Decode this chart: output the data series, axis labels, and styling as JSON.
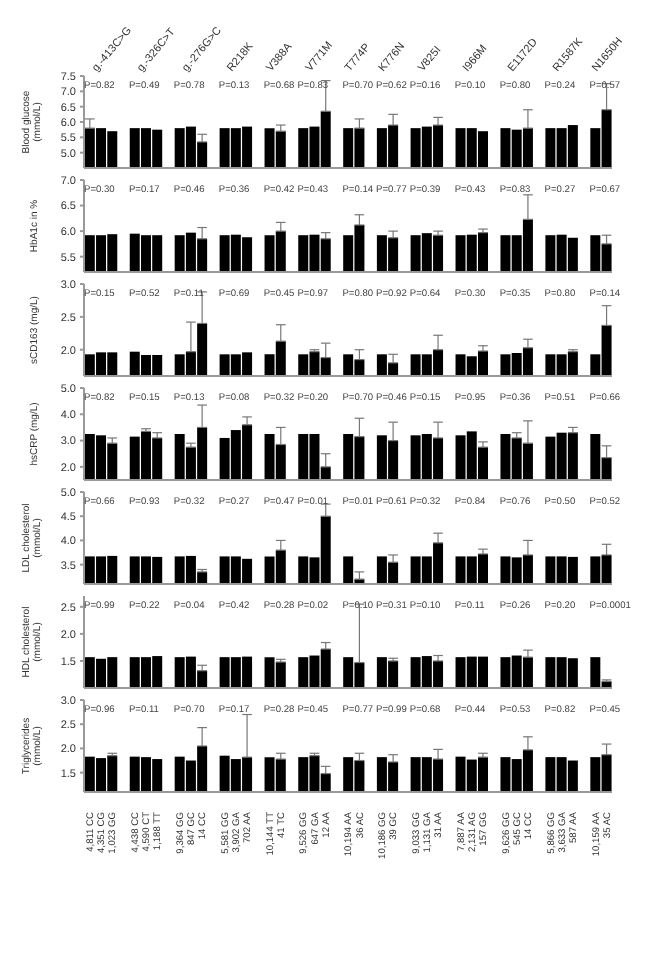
{
  "chart_data": [
    {
      "type": "bar",
      "ylabel": "Blood glucose (mmol/L)",
      "color": "#000000",
      "ylim": [
        4.5,
        7.5
      ],
      "yticks": [
        {
          "value": 5,
          "label": "5.0"
        },
        5.5,
        {
          "value": 6,
          "label": "6.0"
        },
        6.5,
        {
          "value": 7,
          "label": "7.0"
        },
        7.5
      ],
      "tick_labels": "y",
      "categories": [
        null,
        null,
        null,
        null,
        null,
        null,
        null,
        null,
        null,
        null,
        null,
        null,
        null,
        null,
        null,
        null,
        null,
        null,
        null,
        null,
        null,
        null,
        null,
        null,
        null,
        null,
        null,
        null,
        null,
        null,
        null,
        null,
        null,
        null,
        null,
        null,
        null,
        null,
        null,
        null,
        null,
        null,
        null,
        null,
        null,
        null,
        null
      ],
      "values": [
        5.8,
        5.8,
        5.7,
        null,
        5.8,
        5.8,
        5.75,
        null,
        5.8,
        5.85,
        5.35,
        null,
        5.8,
        5.8,
        5.85,
        null,
        5.8,
        5.7,
        null,
        5.8,
        5.85,
        6.35,
        null,
        5.8,
        5.8,
        null,
        5.8,
        5.9,
        null,
        5.8,
        5.85,
        5.9,
        null,
        5.8,
        5.8,
        5.7,
        null,
        5.8,
        5.75,
        5.8,
        null,
        5.8,
        5.8,
        5.9,
        null,
        5.8,
        6.4
      ],
      "errors": [
        [
          5.8,
          6.1
        ],
        null,
        null,
        null,
        null,
        null,
        null,
        null,
        null,
        null,
        [
          5.35,
          5.6
        ],
        null,
        null,
        null,
        null,
        null,
        null,
        [
          5.7,
          5.9
        ],
        null,
        null,
        null,
        [
          6.35,
          7.35
        ],
        null,
        null,
        [
          5.8,
          6.1
        ],
        null,
        null,
        [
          5.9,
          6.25
        ],
        null,
        null,
        null,
        [
          5.9,
          6.15
        ],
        null,
        null,
        null,
        null,
        null,
        null,
        null,
        [
          5.8,
          6.4
        ],
        null,
        null,
        null,
        null,
        null,
        null,
        [
          6.4,
          7.25
        ]
      ],
      "annotations": [
        "g.-413C>G",
        "g.-326C>T",
        "g.-276G>C",
        "R218K",
        "V388A",
        "V771M",
        "T774P",
        "K776N",
        "V825I",
        "I966M",
        "E1172D",
        "R1587K",
        "N1650H",
        "P=0.82",
        "P=0.49",
        "P=0.78",
        "P=0.13",
        "P=0.68",
        "P=0.83",
        "P=0.70",
        "P=0.62",
        "P=0.16",
        "P=0.10",
        "P=0.80",
        "P=0.24",
        "P=0.57"
      ]
    },
    {
      "type": "bar",
      "ylabel": "HbA1c in %",
      "color": "#000000",
      "ylim": [
        5.2,
        7.0
      ],
      "yticks": [
        5.5,
        {
          "value": 6,
          "label": "6.0"
        },
        6.5,
        {
          "value": 7,
          "label": "7.0"
        }
      ],
      "tick_labels": "y",
      "categories": [
        null,
        null,
        null,
        null,
        null,
        null,
        null,
        null,
        null,
        null,
        null,
        null,
        null,
        null,
        null,
        null,
        null,
        null,
        null,
        null,
        null,
        null,
        null,
        null,
        null,
        null,
        null,
        null,
        null,
        null,
        null,
        null,
        null,
        null,
        null,
        null,
        null,
        null,
        null,
        null,
        null,
        null,
        null,
        null,
        null,
        null,
        null
      ],
      "values": [
        5.92,
        5.92,
        5.94,
        null,
        5.95,
        5.92,
        5.92,
        null,
        5.92,
        5.97,
        5.85,
        null,
        5.92,
        5.93,
        5.88,
        null,
        5.92,
        6.0,
        null,
        5.92,
        5.93,
        5.85,
        null,
        5.92,
        6.12,
        null,
        5.92,
        5.87,
        null,
        5.92,
        5.96,
        5.92,
        null,
        5.92,
        5.93,
        5.97,
        null,
        5.92,
        5.92,
        6.23,
        null,
        5.92,
        5.93,
        5.87,
        null,
        5.92,
        5.75
      ],
      "errors": [
        null,
        null,
        null,
        null,
        null,
        null,
        null,
        null,
        null,
        null,
        [
          5.85,
          6.07
        ],
        null,
        null,
        null,
        null,
        null,
        null,
        [
          6.0,
          6.17
        ],
        null,
        null,
        null,
        [
          5.85,
          5.97
        ],
        null,
        null,
        [
          6.12,
          6.32
        ],
        null,
        null,
        [
          5.87,
          6.0
        ],
        null,
        null,
        null,
        [
          5.92,
          6.0
        ],
        null,
        null,
        null,
        [
          5.97,
          6.04
        ],
        null,
        null,
        null,
        [
          6.23,
          6.71
        ],
        null,
        null,
        null,
        null,
        null,
        null,
        [
          5.75,
          5.92
        ]
      ],
      "annotations": [
        "P=0.30",
        "P=0.17",
        "P=0.46",
        "P=0.36",
        "P=0.42",
        "P=0.43",
        "P=0.14",
        "P=0.77",
        "P=0.39",
        "P=0.43",
        "P=0.83",
        "P=0.27",
        "P=0.67"
      ]
    },
    {
      "type": "bar",
      "ylabel": "sCD163 (mg/L)",
      "color": "#000000",
      "ylim": [
        1.6,
        3.0
      ],
      "yticks": [
        {
          "value": 2,
          "label": "2.0"
        },
        2.5,
        {
          "value": 3,
          "label": "3.0"
        }
      ],
      "tick_labels": "y",
      "categories": [
        null,
        null,
        null,
        null,
        null,
        null,
        null,
        null,
        null,
        null,
        null,
        null,
        null,
        null,
        null,
        null,
        null,
        null,
        null,
        null,
        null,
        null,
        null,
        null,
        null,
        null,
        null,
        null,
        null,
        null,
        null,
        null,
        null,
        null,
        null,
        null,
        null,
        null,
        null,
        null,
        null,
        null,
        null,
        null,
        null,
        null,
        null
      ],
      "values": [
        1.93,
        1.96,
        1.96,
        null,
        1.97,
        1.92,
        1.92,
        null,
        1.93,
        1.97,
        2.4,
        null,
        1.93,
        1.93,
        1.96,
        null,
        1.93,
        2.13,
        null,
        1.93,
        1.97,
        1.88,
        null,
        1.93,
        1.85,
        null,
        1.93,
        1.8,
        null,
        1.93,
        1.93,
        2.0,
        null,
        1.93,
        1.9,
        1.98,
        null,
        1.93,
        1.95,
        2.03,
        null,
        1.93,
        1.93,
        1.97,
        null,
        1.93,
        2.37
      ],
      "errors": [
        null,
        null,
        null,
        null,
        null,
        null,
        null,
        null,
        null,
        [
          1.97,
          2.42
        ],
        [
          2.4,
          2.88
        ],
        null,
        null,
        null,
        null,
        null,
        null,
        [
          2.13,
          2.38
        ],
        null,
        null,
        [
          1.97,
          2.0
        ],
        [
          1.88,
          2.1
        ],
        null,
        null,
        [
          1.85,
          2.0
        ],
        null,
        null,
        [
          1.8,
          1.93
        ],
        null,
        null,
        null,
        [
          2.0,
          2.22
        ],
        null,
        null,
        null,
        [
          1.98,
          2.06
        ],
        null,
        null,
        null,
        [
          2.03,
          2.16
        ],
        null,
        null,
        null,
        [
          1.97,
          2.0
        ],
        null,
        null,
        [
          2.37,
          2.67
        ]
      ],
      "annotations": [
        "P=0.15",
        "P=0.52",
        "P=0.11",
        "P=0.69",
        "P=0.45",
        "P=0.97",
        "P=0.80",
        "P=0.92",
        "P=0.64",
        "P=0.30",
        "P=0.35",
        "P=0.80",
        "P=0.14"
      ]
    },
    {
      "type": "bar",
      "ylabel": "hsCRP (mg/L)",
      "color": "#000000",
      "ylim": [
        1.5,
        5.0
      ],
      "yticks": [
        {
          "value": 2,
          "label": "2.0"
        },
        {
          "value": 3,
          "label": "3.0"
        },
        {
          "value": 4,
          "label": "4.0"
        },
        {
          "value": 5,
          "label": "5.0"
        }
      ],
      "tick_labels": "y",
      "categories": [
        null,
        null,
        null,
        null,
        null,
        null,
        null,
        null,
        null,
        null,
        null,
        null,
        null,
        null,
        null,
        null,
        null,
        null,
        null,
        null,
        null,
        null,
        null,
        null,
        null,
        null,
        null,
        null,
        null,
        null,
        null,
        null,
        null,
        null,
        null,
        null,
        null,
        null,
        null,
        null,
        null,
        null,
        null,
        null,
        null,
        null,
        null
      ],
      "values": [
        3.25,
        3.2,
        2.9,
        null,
        3.15,
        3.35,
        3.1,
        null,
        3.25,
        2.75,
        3.5,
        null,
        3.1,
        3.4,
        3.6,
        null,
        3.25,
        2.85,
        null,
        3.25,
        3.25,
        2.0,
        null,
        3.25,
        3.15,
        null,
        3.2,
        3.0,
        null,
        3.2,
        3.25,
        3.1,
        null,
        3.2,
        3.35,
        2.75,
        null,
        3.25,
        3.1,
        2.9,
        null,
        3.15,
        3.3,
        3.3,
        null,
        3.25,
        2.35
      ],
      "errors": [
        null,
        null,
        [
          2.9,
          3.1
        ],
        null,
        null,
        [
          3.35,
          3.45
        ],
        [
          3.1,
          3.3
        ],
        null,
        null,
        [
          2.75,
          2.9
        ],
        [
          3.5,
          4.35
        ],
        null,
        null,
        null,
        [
          3.6,
          3.9
        ],
        null,
        null,
        [
          2.85,
          3.5
        ],
        null,
        null,
        null,
        [
          2.0,
          2.5
        ],
        null,
        null,
        [
          3.15,
          3.85
        ],
        null,
        null,
        [
          3.0,
          3.7
        ],
        null,
        null,
        null,
        [
          3.1,
          3.7
        ],
        null,
        null,
        null,
        [
          2.75,
          2.95
        ],
        null,
        null,
        [
          3.1,
          3.3
        ],
        [
          2.9,
          3.75
        ],
        null,
        null,
        null,
        [
          3.3,
          3.5
        ],
        null,
        null,
        [
          2.35,
          2.8
        ]
      ],
      "annotations": [
        "P=0.82",
        "P=0.15",
        "P=0.13",
        "P=0.08",
        "P=0.32",
        "P=0.20",
        "P=0.70",
        "P=0.46",
        "P=0.15",
        "P=0.95",
        "P=0.36",
        "P=0.51",
        "P=0.66"
      ]
    },
    {
      "type": "bar",
      "ylabel": "LDL cholesterol (mmol/L)",
      "color": "#000000",
      "ylim": [
        3.1,
        5.0
      ],
      "yticks": [
        3.5,
        {
          "value": 4,
          "label": "4.0"
        },
        4.5,
        {
          "value": 5,
          "label": "5.0"
        }
      ],
      "tick_labels": "y",
      "categories": [
        null,
        null,
        null,
        null,
        null,
        null,
        null,
        null,
        null,
        null,
        null,
        null,
        null,
        null,
        null,
        null,
        null,
        null,
        null,
        null,
        null,
        null,
        null,
        null,
        null,
        null,
        null,
        null,
        null,
        null,
        null,
        null,
        null,
        null,
        null,
        null,
        null,
        null,
        null,
        null,
        null,
        null,
        null,
        null,
        null,
        null,
        null
      ],
      "values": [
        3.67,
        3.67,
        3.68,
        null,
        3.67,
        3.67,
        3.66,
        null,
        3.67,
        3.68,
        3.35,
        null,
        3.67,
        3.67,
        3.62,
        null,
        3.67,
        3.8,
        null,
        3.67,
        3.65,
        4.5,
        null,
        3.67,
        3.2,
        null,
        3.67,
        3.55,
        null,
        3.67,
        3.67,
        3.95,
        null,
        3.67,
        3.67,
        3.72,
        null,
        3.67,
        3.65,
        3.7,
        null,
        3.67,
        3.67,
        3.66,
        null,
        3.67,
        3.7
      ],
      "errors": [
        null,
        null,
        null,
        null,
        null,
        null,
        null,
        null,
        null,
        null,
        [
          3.35,
          3.4
        ],
        null,
        null,
        null,
        null,
        null,
        null,
        [
          3.8,
          4.0
        ],
        null,
        null,
        null,
        [
          4.5,
          4.75
        ],
        null,
        null,
        [
          3.2,
          3.35
        ],
        null,
        null,
        [
          3.55,
          3.7
        ],
        null,
        null,
        null,
        [
          3.95,
          4.15
        ],
        null,
        null,
        null,
        [
          3.72,
          3.82
        ],
        null,
        null,
        null,
        [
          3.7,
          4.0
        ],
        null,
        null,
        null,
        null,
        null,
        null,
        [
          3.7,
          3.92
        ]
      ],
      "annotations": [
        "P=0.66",
        "P=0.93",
        "P=0.32",
        "P=0.27",
        "P=0.47",
        "P=0.01",
        "P=0.01",
        "P=0.61",
        "P=0.32",
        "P=0.84",
        "P=0.76",
        "P=0.50",
        "P=0.52"
      ]
    },
    {
      "type": "bar",
      "ylabel": "HDL cholesterol (mmol/L)",
      "color": "#000000",
      "ylim": [
        1.0,
        2.7
      ],
      "yticks": [
        1.5,
        {
          "value": 2,
          "label": "2.0"
        },
        2.5
      ],
      "tick_labels": "y",
      "categories": [
        null,
        null,
        null,
        null,
        null,
        null,
        null,
        null,
        null,
        null,
        null,
        null,
        null,
        null,
        null,
        null,
        null,
        null,
        null,
        null,
        null,
        null,
        null,
        null,
        null,
        null,
        null,
        null,
        null,
        null,
        null,
        null,
        null,
        null,
        null,
        null,
        null,
        null,
        null,
        null,
        null,
        null,
        null,
        null,
        null,
        null,
        null
      ],
      "values": [
        1.57,
        1.54,
        1.57,
        null,
        1.57,
        1.57,
        1.59,
        null,
        1.57,
        1.58,
        1.32,
        null,
        1.57,
        1.57,
        1.58,
        null,
        1.57,
        1.48,
        null,
        1.57,
        1.6,
        1.72,
        null,
        1.57,
        1.47,
        null,
        1.57,
        1.5,
        null,
        1.57,
        1.59,
        1.5,
        null,
        1.57,
        1.58,
        1.58,
        null,
        1.57,
        1.6,
        1.57,
        null,
        1.57,
        1.57,
        1.55,
        null,
        1.57,
        1.12
      ],
      "errors": [
        null,
        null,
        null,
        null,
        null,
        null,
        null,
        null,
        null,
        null,
        [
          1.32,
          1.42
        ],
        null,
        null,
        null,
        null,
        null,
        null,
        [
          1.48,
          1.53
        ],
        null,
        null,
        null,
        [
          1.72,
          1.84
        ],
        null,
        null,
        [
          1.47,
          2.55
        ],
        null,
        null,
        [
          1.5,
          1.55
        ],
        null,
        null,
        null,
        [
          1.5,
          1.6
        ],
        null,
        null,
        null,
        null,
        null,
        null,
        null,
        [
          1.57,
          1.7
        ],
        null,
        null,
        null,
        null,
        null,
        null,
        [
          1.12,
          1.15
        ]
      ],
      "annotations": [
        "P=0.99",
        "P=0.22",
        "P=0.04",
        "P=0.42",
        "P=0.28",
        "P=0.02",
        "P=0.10",
        "P=0.31",
        "P=0.10",
        "P=0.11",
        "P=0.26",
        "P=0.20",
        "P=0.0001"
      ]
    },
    {
      "type": "bar",
      "ylabel": "Triglycerides (mmol/L)",
      "color": "#000000",
      "ylim": [
        1.1,
        3.0
      ],
      "yticks": [
        1.5,
        {
          "value": 2,
          "label": "2.0"
        },
        2.5,
        {
          "value": 3,
          "label": "3.0"
        }
      ],
      "categories": [
        "4,811 CC",
        "4,351 CG",
        "1,023 GG",
        null,
        "4,438 CC",
        "4,590 CT",
        "1,188 TT",
        null,
        "9,364 GG",
        "847 GC",
        "14 CC",
        null,
        "5,581 GG",
        "3,902 GA",
        "702 AA",
        null,
        "10,144 TT",
        "41 TC",
        null,
        "9,526 GG",
        "647 GA",
        "12 AA",
        null,
        "10,194 AA",
        "36 AC",
        null,
        "10,186 GG",
        "39 GC",
        null,
        "9,033 GG",
        "1,131 GA",
        "31 AA",
        null,
        "7,887 AA",
        "2,131 AG",
        "157 GG",
        null,
        "9,626 GG",
        "545 GC",
        "14 CC",
        null,
        "5,866 GG",
        "3,633 GA",
        "587 AA",
        null,
        "10,159 AA",
        "35 AC"
      ],
      "values": [
        1.83,
        1.8,
        1.85,
        null,
        1.83,
        1.82,
        1.78,
        null,
        1.83,
        1.75,
        2.05,
        null,
        1.85,
        1.78,
        1.82,
        null,
        1.82,
        1.78,
        null,
        1.82,
        1.85,
        1.48,
        null,
        1.82,
        1.75,
        null,
        1.82,
        1.72,
        null,
        1.82,
        1.82,
        1.78,
        null,
        1.83,
        1.77,
        1.82,
        null,
        1.82,
        1.78,
        1.97,
        null,
        1.82,
        1.82,
        1.75,
        null,
        1.82,
        1.87
      ],
      "errors": [
        null,
        null,
        [
          1.85,
          1.9
        ],
        null,
        null,
        null,
        null,
        null,
        null,
        null,
        [
          2.05,
          2.43
        ],
        null,
        null,
        null,
        [
          1.82,
          2.7
        ],
        null,
        null,
        [
          1.78,
          1.9
        ],
        null,
        null,
        [
          1.85,
          1.9
        ],
        [
          1.48,
          1.63
        ],
        null,
        null,
        [
          1.75,
          1.9
        ],
        null,
        null,
        [
          1.72,
          1.87
        ],
        null,
        null,
        null,
        [
          1.78,
          1.98
        ],
        null,
        null,
        null,
        [
          1.82,
          1.9
        ],
        null,
        null,
        null,
        [
          1.97,
          2.24
        ],
        null,
        null,
        null,
        null,
        null,
        null,
        [
          1.87,
          2.09
        ]
      ],
      "annotations": [
        "P=0.96",
        "P=0.11",
        "P=0.70",
        "P=0.17",
        "P=0.28",
        "P=0.45",
        "P=0.77",
        "P=0.99",
        "P=0.68",
        "P=0.44",
        "P=0.53",
        "P=0.82",
        "P=0.45"
      ]
    }
  ]
}
